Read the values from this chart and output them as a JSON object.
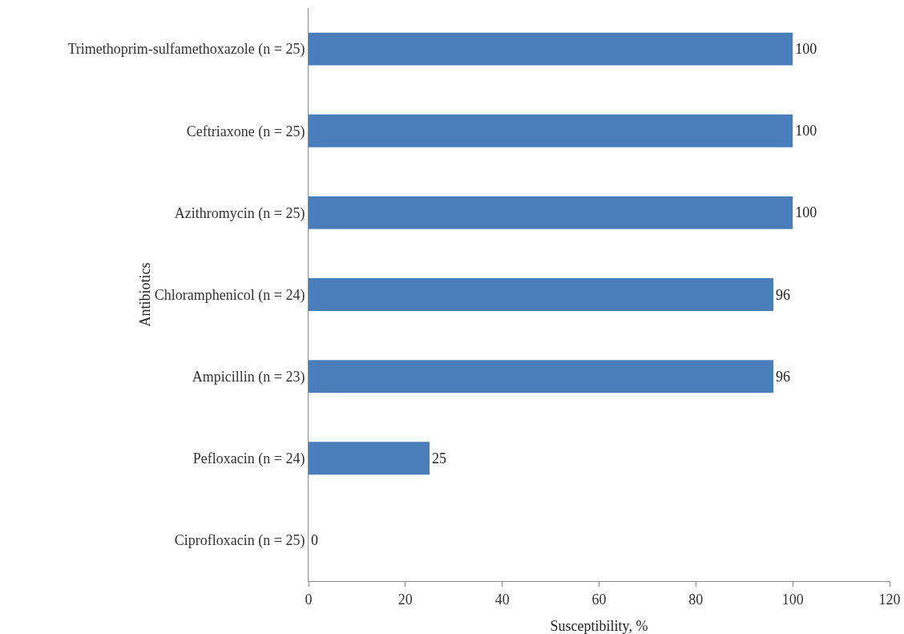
{
  "chart_data": {
    "type": "bar",
    "orientation": "horizontal",
    "xlabel": "Susceptibility, %",
    "ylabel": "Antibiotics",
    "categories": [
      "Trimethoprim-sulfamethoxazole (n = 25)",
      "Ceftriaxone (n = 25)",
      "Azithromycin (n = 25)",
      "Chloramphenicol (n = 24)",
      "Ampicillin (n = 23)",
      "Pefloxacin (n = 24)",
      "Ciprofloxacin (n = 25)"
    ],
    "values": [
      100,
      100,
      100,
      96,
      96,
      25,
      0
    ],
    "color": "#4a7ebb",
    "xlim": [
      0,
      120
    ],
    "xticks": [
      0,
      20,
      40,
      60,
      80,
      100,
      120
    ],
    "legend": false,
    "data_labels": true
  }
}
